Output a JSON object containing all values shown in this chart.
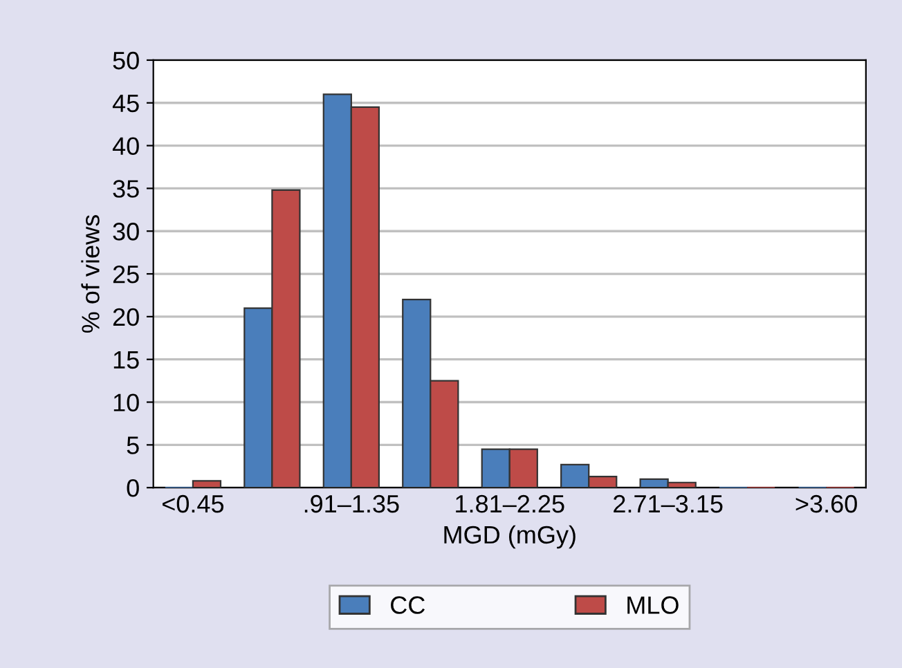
{
  "chart_data": {
    "type": "bar",
    "xlabel": "MGD (mGy)",
    "ylabel": "% of views",
    "categories": [
      "<0.45",
      null,
      ".91–1.35",
      null,
      "1.81–2.25",
      null,
      "2.71–3.15",
      null,
      ">3.60"
    ],
    "series": [
      {
        "name": "CC",
        "color": "#4a7ebb",
        "values": [
          0,
          21,
          46,
          22,
          4.5,
          2.7,
          1,
          0,
          0
        ]
      },
      {
        "name": "MLO",
        "color": "#be4b48",
        "values": [
          0.8,
          34.8,
          44.5,
          12.5,
          4.5,
          1.3,
          0.6,
          0,
          0
        ]
      }
    ],
    "ylim": [
      0,
      50
    ],
    "yticks": [
      0,
      5,
      10,
      15,
      20,
      25,
      30,
      35,
      40,
      45,
      50
    ],
    "grid": "y",
    "legend": "bottom"
  }
}
